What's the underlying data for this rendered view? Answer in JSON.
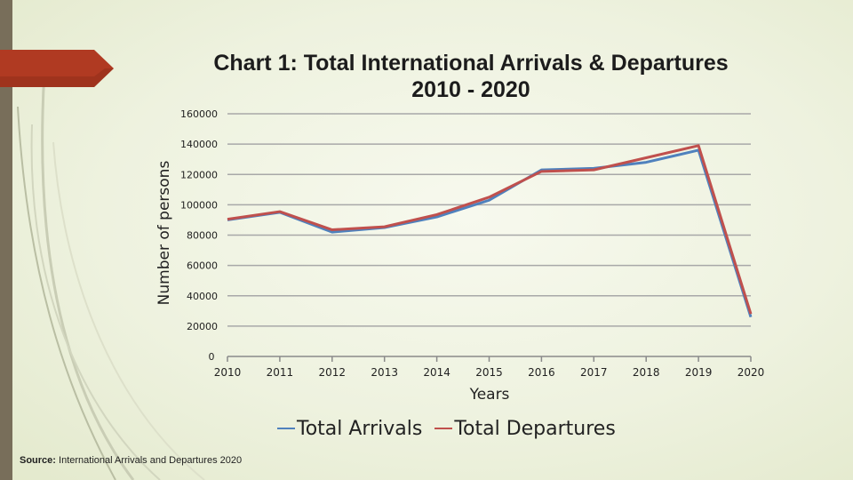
{
  "slide": {
    "title_line1": "Chart 1:  Total International Arrivals & Departures",
    "title_line2": "2010  -  2020",
    "source_label": "Source:",
    "source_text": " International Arrivals and Departures 2020",
    "accent_color": "#b03a22",
    "sidebar_color": "#786e5a"
  },
  "chart_data": {
    "type": "line",
    "title": "Chart 1:  Total International Arrivals & Departures 2010  -  2020",
    "xlabel": "Years",
    "ylabel": "Number of persons",
    "categories": [
      "2010",
      "2011",
      "2012",
      "2013",
      "2014",
      "2015",
      "2016",
      "2017",
      "2018",
      "2019",
      "2020"
    ],
    "y_ticks": [
      "160000",
      "140000",
      "120000",
      "100000",
      "80000",
      "60000",
      "40000",
      "20000",
      "0"
    ],
    "ylim": [
      0,
      160000
    ],
    "grid": true,
    "legend_position": "bottom",
    "series": [
      {
        "name": "Total Arrivals",
        "color": "#4f81bd",
        "values": [
          90000,
          95000,
          82000,
          85000,
          92000,
          103000,
          123000,
          124000,
          128000,
          136000,
          26000
        ]
      },
      {
        "name": "Total Departures",
        "color": "#c0504d",
        "values": [
          90500,
          95500,
          83500,
          85500,
          93500,
          105000,
          122000,
          123000,
          131000,
          139000,
          28000
        ]
      }
    ]
  }
}
